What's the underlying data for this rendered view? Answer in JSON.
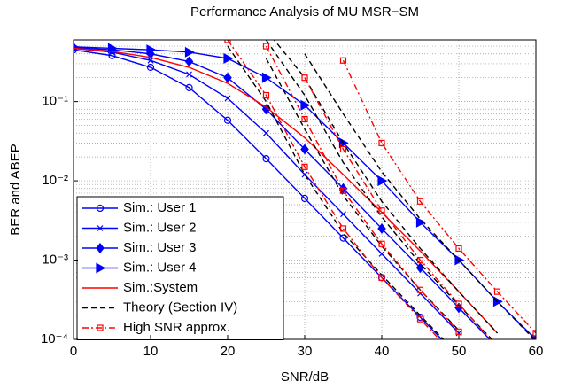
{
  "chart_data": {
    "type": "line",
    "title": "Performance Analysis of MU MSR−SM",
    "xlabel": "SNR/dB",
    "ylabel": "BER and ABEP",
    "xlim": [
      0,
      60
    ],
    "xticks": [
      0,
      10,
      20,
      30,
      40,
      50,
      60
    ],
    "ylim": [
      0.0001,
      0.6
    ],
    "yscale": "log",
    "yticks": [
      {
        "value": 0.0001,
        "label": "10⁻⁴"
      },
      {
        "value": 0.001,
        "label": "10⁻³"
      },
      {
        "value": 0.01,
        "label": "10⁻²"
      },
      {
        "value": 0.1,
        "label": "10⁻¹"
      }
    ],
    "yminorticks": [
      0.0002,
      0.0003,
      0.0004,
      0.0005,
      0.0006,
      0.0007,
      0.0008,
      0.0009,
      0.002,
      0.003,
      0.004,
      0.005,
      0.006,
      0.007,
      0.008,
      0.009,
      0.02,
      0.03,
      0.04,
      0.05,
      0.06,
      0.07,
      0.08,
      0.09,
      0.2,
      0.3,
      0.4,
      0.5
    ],
    "grid": true,
    "legend": "lower left",
    "series": [
      {
        "name": "Sim.: User 1",
        "color": "#0000ff",
        "marker": "circle",
        "dash": "solid",
        "x": [
          0,
          5,
          10,
          15,
          20,
          25,
          30,
          35,
          40,
          45,
          50
        ],
        "values": [
          0.45,
          0.38,
          0.27,
          0.15,
          0.058,
          0.019,
          0.006,
          0.0019,
          0.0006,
          0.00019,
          6e-05
        ]
      },
      {
        "name": "Sim.: User 2",
        "color": "#0000ff",
        "marker": "x",
        "dash": "solid",
        "x": [
          0,
          5,
          10,
          15,
          20,
          25,
          30,
          35,
          40,
          45,
          50
        ],
        "values": [
          0.47,
          0.42,
          0.33,
          0.22,
          0.11,
          0.04,
          0.012,
          0.0038,
          0.0012,
          0.00038,
          0.00012
        ]
      },
      {
        "name": "Sim.: User 3",
        "color": "#0000ff",
        "marker": "diamond",
        "dash": "solid",
        "x": [
          0,
          5,
          10,
          15,
          20,
          25,
          30,
          35,
          40,
          45,
          50,
          55
        ],
        "values": [
          0.48,
          0.45,
          0.4,
          0.32,
          0.2,
          0.08,
          0.025,
          0.008,
          0.0025,
          0.0008,
          0.00025,
          8e-05
        ]
      },
      {
        "name": "Sim.: User 4",
        "color": "#0000ff",
        "marker": "triangle",
        "dash": "solid",
        "x": [
          0,
          5,
          10,
          15,
          20,
          25,
          30,
          35,
          40,
          45,
          50,
          55,
          60
        ],
        "values": [
          0.49,
          0.47,
          0.45,
          0.42,
          0.35,
          0.2,
          0.09,
          0.03,
          0.01,
          0.003,
          0.001,
          0.0003,
          0.0001
        ]
      },
      {
        "name": "Sim.:System",
        "color": "#ff0000",
        "marker": "none",
        "dash": "solid",
        "x": [
          0,
          5,
          10,
          15,
          20,
          25,
          30,
          35,
          40,
          45,
          50,
          55
        ],
        "values": [
          0.47,
          0.43,
          0.36,
          0.27,
          0.17,
          0.085,
          0.035,
          0.012,
          0.004,
          0.0013,
          0.0004,
          0.00012
        ]
      },
      {
        "name": "Theory (Section IV)",
        "color": "#000000",
        "marker": "none",
        "dash": "dash",
        "x": [
          20,
          25,
          30,
          35,
          40,
          45,
          50
        ],
        "values": [
          0.5,
          0.1,
          0.012,
          0.0022,
          0.00065,
          0.0002,
          6.3e-05
        ]
      },
      {
        "color": "#000000",
        "marker": "none",
        "dash": "dash",
        "x": [
          25,
          30,
          35,
          40,
          45,
          50
        ],
        "values": [
          0.35,
          0.045,
          0.0065,
          0.0015,
          0.00042,
          0.00013
        ]
      },
      {
        "color": "#000000",
        "marker": "none",
        "dash": "dash",
        "x": [
          25,
          30,
          35,
          40,
          45,
          50,
          55
        ],
        "values": [
          0.6,
          0.12,
          0.017,
          0.0035,
          0.0009,
          0.00027,
          8.5e-05
        ]
      },
      {
        "color": "#000000",
        "marker": "none",
        "dash": "dash",
        "x": [
          25,
          30,
          35,
          40,
          45,
          50,
          55
        ],
        "values": [
          0.8,
          0.2,
          0.03,
          0.0055,
          0.0014,
          0.0004,
          0.00012
        ]
      },
      {
        "color": "#000000",
        "marker": "none",
        "dash": "dash",
        "x": [
          30,
          35,
          40,
          45,
          50,
          55,
          60
        ],
        "values": [
          0.4,
          0.07,
          0.013,
          0.0033,
          0.001,
          0.0003,
          9.5e-05
        ]
      },
      {
        "name": "High SNR approx.",
        "color": "#ff0000",
        "marker": "square",
        "dash": "dashdot",
        "x": [
          20,
          25,
          30,
          35,
          40,
          45,
          50
        ],
        "values": [
          0.6,
          0.12,
          0.015,
          0.0025,
          0.0006,
          0.00018,
          5.5e-05
        ]
      },
      {
        "color": "#ff0000",
        "marker": "square",
        "dash": "dashdot",
        "x": [
          25,
          30,
          35,
          40,
          45,
          50
        ],
        "values": [
          0.5,
          0.06,
          0.0075,
          0.0016,
          0.00042,
          0.000125
        ]
      },
      {
        "color": "#ff0000",
        "marker": "square",
        "dash": "dashdot",
        "x": [
          30,
          35,
          40,
          45,
          50,
          55
        ],
        "values": [
          0.2,
          0.025,
          0.0042,
          0.001,
          0.00028,
          8e-05
        ]
      },
      {
        "color": "#ff0000",
        "marker": "square",
        "dash": "dashdot",
        "x": [
          35,
          40,
          45,
          50,
          55,
          60
        ],
        "values": [
          0.33,
          0.03,
          0.0055,
          0.0014,
          0.0004,
          0.00012
        ]
      }
    ]
  }
}
